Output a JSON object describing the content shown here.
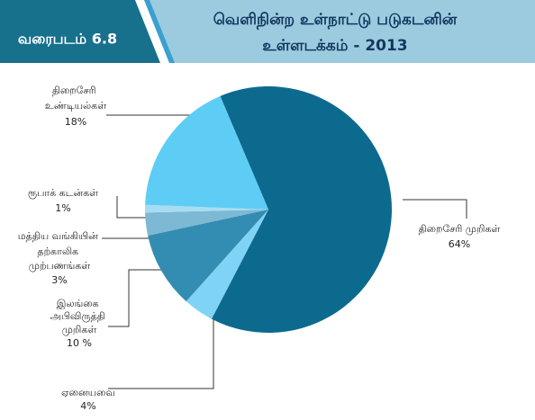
{
  "figure_label": "வரைபடம் 6.8",
  "chart_data": {
    "type": "pie",
    "title": [
      "வெளிநின்ற உள்நாட்டு படுகடனின்",
      "உள்ளடக்கம் - 2013"
    ],
    "categories": [
      "திறைசேரி முறிகள்",
      "ஏனையவை",
      "இலங்கை அபிவிருத்தி முறிகள்",
      "மத்திய வங்கியின் தற்காலிக முற்பணங்கள்",
      "ரூபாக் கடன்கள்",
      "திறைசேரி உண்டியல்கள்"
    ],
    "values": [
      64,
      4,
      10,
      3,
      1,
      18
    ],
    "value_labels": [
      "64%",
      "4%",
      "10 %",
      "3%",
      "1%",
      "18%"
    ],
    "colors": [
      "#0d6a8f",
      "#7fd4f6",
      "#338db2",
      "#7db8d4",
      "#a8dcf3",
      "#5ecdf5"
    ]
  }
}
